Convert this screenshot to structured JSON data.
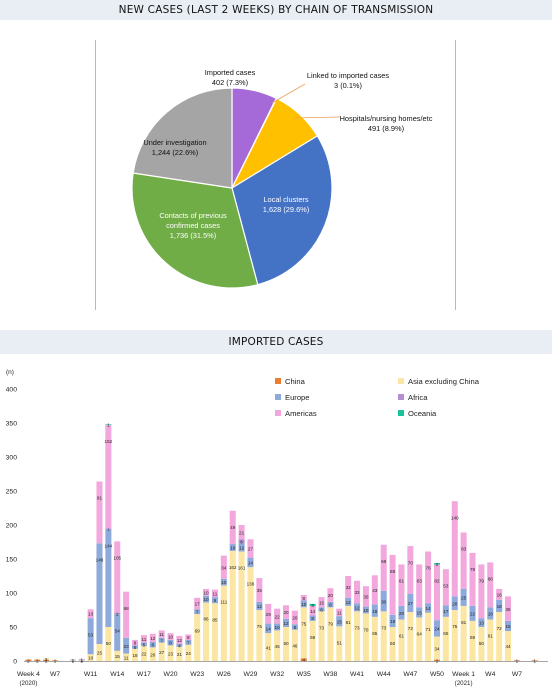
{
  "pie_section": {
    "title": "NEW CASES (LAST 2 WEEKS) BY CHAIN OF TRANSMISSION"
  },
  "bar_section": {
    "title": "IMPORTED CASES"
  },
  "chart_data": [
    {
      "type": "pie",
      "title": "NEW CASES (LAST 2 WEEKS) BY CHAIN OF TRANSMISSION",
      "slices": [
        {
          "name": "Imported cases",
          "label": "402 (7.3%)",
          "value": 402,
          "percent": 7.3,
          "color": "#a569d8"
        },
        {
          "name": "Linked to imported cases",
          "label": "3 (0.1%)",
          "value": 3,
          "percent": 0.1,
          "color": "#ed7d31"
        },
        {
          "name": "Hospitals/nursing homes/etc",
          "label": "491 (8.9%)",
          "value": 491,
          "percent": 8.9,
          "color": "#ffc000"
        },
        {
          "name": "Local clusters",
          "label": "1,628 (29.6%)",
          "value": 1628,
          "percent": 29.6,
          "color": "#4472c4"
        },
        {
          "name": "Contacts of previous confirmed cases",
          "label": "1,736 (31.5%)",
          "value": 1736,
          "percent": 31.5,
          "color": "#70ad47"
        },
        {
          "name": "Under investigation",
          "label": "1,244 (22.6%)",
          "value": 1244,
          "percent": 22.6,
          "color": "#a5a5a5"
        }
      ]
    },
    {
      "type": "bar",
      "stacked": true,
      "title": "IMPORTED CASES",
      "ylabel": "(n)",
      "ylim": [
        0,
        400
      ],
      "yticks": [
        0,
        50,
        100,
        150,
        200,
        250,
        300,
        350,
        400
      ],
      "x": [
        4,
        5,
        6,
        7,
        8,
        9,
        10,
        11,
        12,
        13,
        14,
        15,
        16,
        17,
        18,
        19,
        20,
        21,
        22,
        23,
        24,
        25,
        26,
        27,
        28,
        29,
        30,
        31,
        32,
        33,
        34,
        35,
        36,
        37,
        38,
        39,
        40,
        41,
        42,
        43,
        44,
        45,
        46,
        47,
        48,
        49,
        50,
        51,
        52,
        53,
        54,
        55,
        56,
        57,
        58,
        59,
        60,
        61,
        62
      ],
      "xtick_labels": [
        {
          "index": 0,
          "line1": "Week 4",
          "line2": "(2020)"
        },
        {
          "index": 3,
          "line1": "W7"
        },
        {
          "index": 7,
          "line1": "W11"
        },
        {
          "index": 10,
          "line1": "W14"
        },
        {
          "index": 13,
          "line1": "W17"
        },
        {
          "index": 16,
          "line1": "W20"
        },
        {
          "index": 19,
          "line1": "W23"
        },
        {
          "index": 22,
          "line1": "W26"
        },
        {
          "index": 25,
          "line1": "W29"
        },
        {
          "index": 28,
          "line1": "W32"
        },
        {
          "index": 31,
          "line1": "W35"
        },
        {
          "index": 34,
          "line1": "W38"
        },
        {
          "index": 37,
          "line1": "W41"
        },
        {
          "index": 40,
          "line1": "W44"
        },
        {
          "index": 43,
          "line1": "W47"
        },
        {
          "index": 46,
          "line1": "W50"
        },
        {
          "index": 49,
          "line1": "Week 1",
          "line2": "(2021)"
        },
        {
          "index": 52,
          "line1": "W4"
        },
        {
          "index": 55,
          "line1": "W7"
        }
      ],
      "legend_placement": "top-right",
      "series": [
        {
          "name": "China",
          "color": "#ed7d31",
          "values": [
            2,
            2,
            2,
            1,
            0,
            0,
            0,
            0,
            0,
            0,
            0,
            0,
            0,
            0,
            0,
            0,
            0,
            0,
            0,
            0,
            0,
            0,
            0,
            0,
            0,
            0,
            0,
            0,
            0,
            0,
            0,
            4,
            0,
            0,
            0,
            0,
            0,
            0,
            0,
            0,
            0,
            0,
            0,
            0,
            0,
            0,
            2,
            0,
            0,
            0,
            0,
            0,
            0,
            0,
            0,
            1,
            0,
            1,
            0
          ]
        },
        {
          "name": "Asia excluding China",
          "color": "#fbe7a3",
          "values": [
            0,
            0,
            2,
            0,
            0,
            1,
            1,
            10,
            25,
            50,
            15,
            11,
            18,
            22,
            20,
            27,
            23,
            21,
            24,
            69,
            86,
            85,
            111,
            162,
            161,
            138,
            75,
            41,
            45,
            50,
            46,
            75,
            59,
            73,
            79,
            51,
            81,
            73,
            70,
            65,
            73,
            50,
            61,
            72,
            64,
            71,
            34,
            65,
            75,
            81,
            59,
            50,
            61,
            72,
            44,
            0,
            0,
            0,
            0
          ]
        },
        {
          "name": "Europe",
          "color": "#8eaadb",
          "values": [
            0,
            0,
            0,
            0,
            0,
            1,
            1,
            53,
            148,
            144,
            54,
            23,
            5,
            5,
            8,
            7,
            8,
            4,
            7,
            7,
            10,
            9,
            10,
            10,
            12,
            14,
            12,
            14,
            10,
            12,
            8,
            10,
            8,
            6,
            8,
            15,
            12,
            12,
            10,
            18,
            30,
            18,
            20,
            27,
            15,
            14,
            24,
            17,
            20,
            25,
            22,
            13,
            18,
            18,
            15,
            0,
            0,
            0,
            0
          ]
        },
        {
          "name": "Africa",
          "color": "#b48fd6",
          "values": [
            0,
            0,
            0,
            0,
            0,
            0,
            0,
            0,
            0,
            1,
            2,
            0,
            0,
            0,
            0,
            0,
            0,
            0,
            0,
            0,
            0,
            0,
            0,
            0,
            6,
            0,
            0,
            0,
            0,
            0,
            0,
            0,
            0,
            0,
            0,
            0,
            0,
            0,
            0,
            0,
            0,
            0,
            0,
            0,
            0,
            0,
            0,
            0,
            0,
            0,
            0,
            0,
            0,
            0,
            0,
            0,
            0,
            0,
            0
          ]
        },
        {
          "name": "Americas",
          "color": "#f2a8dd",
          "values": [
            0,
            0,
            0,
            0,
            0,
            0,
            1,
            13,
            91,
            152,
            105,
            68,
            8,
            11,
            12,
            11,
            10,
            12,
            8,
            17,
            10,
            11,
            34,
            49,
            21,
            27,
            35,
            29,
            22,
            20,
            20,
            8,
            14,
            15,
            20,
            11,
            32,
            33,
            30,
            43,
            68,
            88,
            61,
            70,
            63,
            76,
            82,
            53,
            140,
            83,
            78,
            79,
            66,
            16,
            36,
            0,
            0,
            0,
            0
          ]
        },
        {
          "name": "Oceania",
          "color": "#1cc29b",
          "values": [
            0,
            0,
            0,
            0,
            0,
            0,
            0,
            0,
            0,
            1,
            0,
            0,
            0,
            0,
            0,
            0,
            0,
            0,
            0,
            0,
            0,
            0,
            0,
            0,
            0,
            0,
            0,
            0,
            0,
            0,
            0,
            0,
            3,
            0,
            0,
            0,
            0,
            0,
            0,
            0,
            0,
            0,
            0,
            0,
            0,
            0,
            2,
            0,
            0,
            0,
            0,
            0,
            0,
            0,
            0,
            0,
            0,
            0,
            0
          ]
        }
      ]
    }
  ]
}
